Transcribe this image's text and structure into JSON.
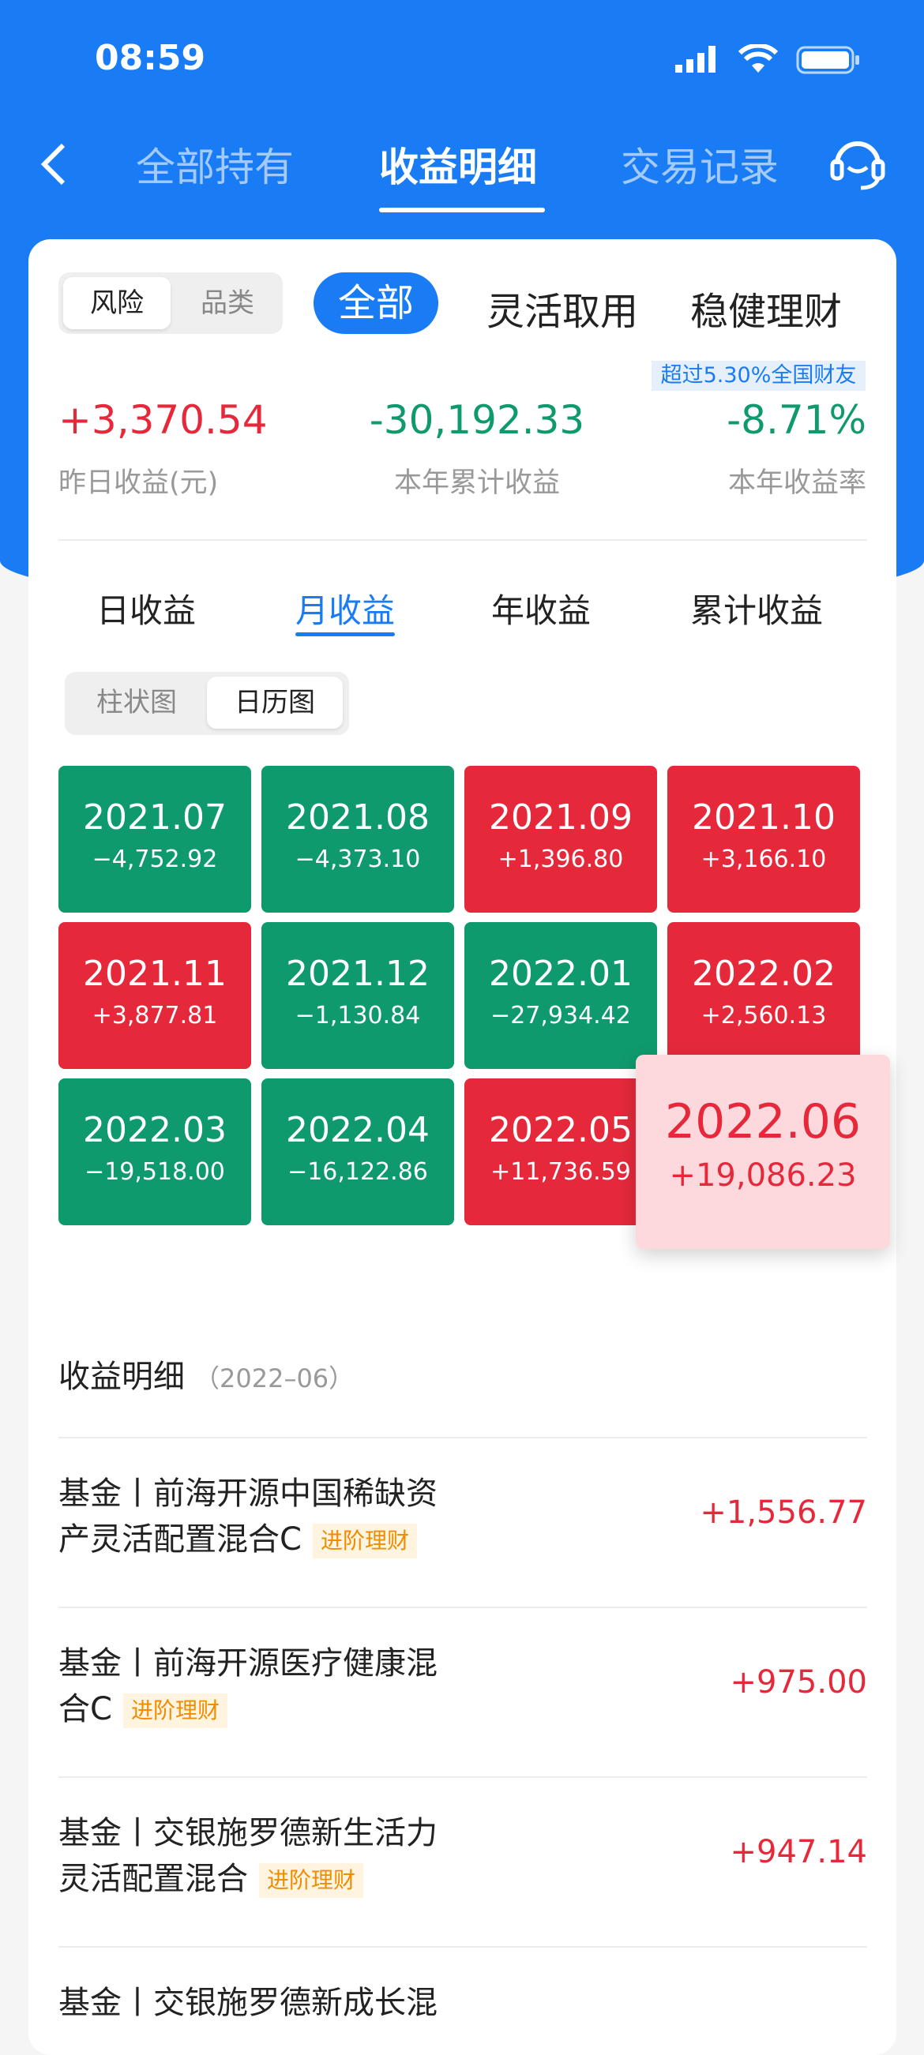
{
  "status": {
    "time": "08:59"
  },
  "nav": {
    "tabs": [
      "全部持有",
      "收益明细",
      "交易记录"
    ],
    "active": 1
  },
  "filter": {
    "segments": [
      "风险",
      "品类"
    ],
    "categories": [
      "全部",
      "灵活取用",
      "稳健理财"
    ]
  },
  "summary": {
    "badge": "超过5.30%全国财友",
    "yesterday": "+3,370.54",
    "yesterday_label": "昨日收益(元)",
    "ytd": "-30,192.33",
    "ytd_label": "本年累计收益",
    "rate": "-8.71%",
    "rate_label": "本年收益率"
  },
  "tabs": [
    "日收益",
    "月收益",
    "年收益",
    "累计收益"
  ],
  "view_toggle": [
    "柱状图",
    "日历图"
  ],
  "calendar": [
    {
      "month": "2021.07",
      "value": "−4,752.92",
      "sign": "neg"
    },
    {
      "month": "2021.08",
      "value": "−4,373.10",
      "sign": "neg"
    },
    {
      "month": "2021.09",
      "value": "+1,396.80",
      "sign": "pos"
    },
    {
      "month": "2021.10",
      "value": "+3,166.10",
      "sign": "pos"
    },
    {
      "month": "2021.11",
      "value": "+3,877.81",
      "sign": "pos"
    },
    {
      "month": "2021.12",
      "value": "−1,130.84",
      "sign": "neg"
    },
    {
      "month": "2022.01",
      "value": "−27,934.42",
      "sign": "neg"
    },
    {
      "month": "2022.02",
      "value": "+2,560.13",
      "sign": "pos"
    },
    {
      "month": "2022.03",
      "value": "−19,518.00",
      "sign": "neg"
    },
    {
      "month": "2022.04",
      "value": "−16,122.86",
      "sign": "neg"
    },
    {
      "month": "2022.05",
      "value": "+11,736.59",
      "sign": "pos"
    }
  ],
  "selected": {
    "month": "2022.06",
    "value": "+19,086.23"
  },
  "detail": {
    "title": "收益明细",
    "period": "（2022–06）",
    "items": [
      {
        "line1": "基金丨前海开源中国稀缺资",
        "line2": "产灵活配置混合C",
        "tag": "进阶理财",
        "value": "+1,556.77"
      },
      {
        "line1": "基金丨前海开源医疗健康混",
        "line2": "合C",
        "tag": "进阶理财",
        "value": "+975.00"
      },
      {
        "line1": "基金丨交银施罗德新生活力",
        "line2": "灵活配置混合",
        "tag": "进阶理财",
        "value": "+947.14"
      },
      {
        "line1": "基金丨交银施罗德新成长混",
        "line2": "",
        "tag": "",
        "value": ""
      }
    ]
  },
  "colors": {
    "brand": "#1a7cf5",
    "positive": "#e5293b",
    "negative": "#0f9a6e"
  }
}
